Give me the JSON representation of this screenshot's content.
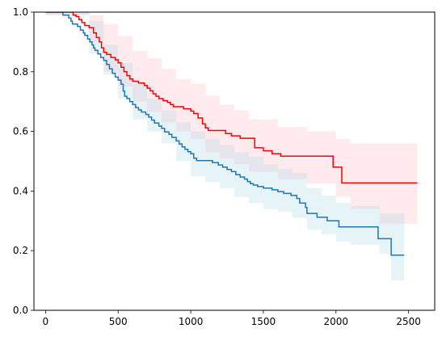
{
  "chart_data": {
    "type": "line",
    "step": true,
    "xlim": [
      -80,
      2680
    ],
    "ylim": [
      0,
      1.0
    ],
    "x_ticks": [
      0,
      500,
      1000,
      1500,
      2000,
      2500
    ],
    "y_ticks": [
      0.0,
      0.2,
      0.4,
      0.6,
      0.8,
      1.0
    ],
    "x_tick_labels": [
      "0",
      "500",
      "1000",
      "1500",
      "2000",
      "2500"
    ],
    "y_tick_labels": [
      "0.0",
      "0.2",
      "0.4",
      "0.6",
      "0.8",
      "1.0"
    ],
    "grid": false,
    "series": [
      {
        "color": "#ff0000",
        "band_color": "#ffb6c1",
        "band_opacity": 0.28,
        "points": [
          [
            0,
            1.0
          ],
          [
            170,
            1.0
          ],
          [
            190,
            0.99
          ],
          [
            210,
            0.985
          ],
          [
            230,
            0.975
          ],
          [
            250,
            0.965
          ],
          [
            270,
            0.955
          ],
          [
            300,
            0.948
          ],
          [
            330,
            0.93
          ],
          [
            350,
            0.915
          ],
          [
            370,
            0.9
          ],
          [
            385,
            0.88
          ],
          [
            400,
            0.865
          ],
          [
            420,
            0.858
          ],
          [
            450,
            0.848
          ],
          [
            480,
            0.84
          ],
          [
            500,
            0.83
          ],
          [
            520,
            0.815
          ],
          [
            540,
            0.8
          ],
          [
            560,
            0.787
          ],
          [
            580,
            0.776
          ],
          [
            600,
            0.768
          ],
          [
            640,
            0.762
          ],
          [
            680,
            0.754
          ],
          [
            700,
            0.745
          ],
          [
            720,
            0.736
          ],
          [
            740,
            0.726
          ],
          [
            760,
            0.718
          ],
          [
            780,
            0.71
          ],
          [
            810,
            0.703
          ],
          [
            840,
            0.697
          ],
          [
            860,
            0.69
          ],
          [
            880,
            0.683
          ],
          [
            950,
            0.676
          ],
          [
            1000,
            0.668
          ],
          [
            1020,
            0.66
          ],
          [
            1050,
            0.645
          ],
          [
            1080,
            0.625
          ],
          [
            1100,
            0.612
          ],
          [
            1120,
            0.603
          ],
          [
            1240,
            0.593
          ],
          [
            1280,
            0.585
          ],
          [
            1340,
            0.577
          ],
          [
            1440,
            0.545
          ],
          [
            1500,
            0.535
          ],
          [
            1560,
            0.525
          ],
          [
            1620,
            0.517
          ],
          [
            1980,
            0.48
          ],
          [
            2040,
            0.427
          ],
          [
            2560,
            0.427
          ]
        ],
        "upper": [
          [
            0,
            1.0
          ],
          [
            300,
            0.99
          ],
          [
            400,
            0.96
          ],
          [
            500,
            0.92
          ],
          [
            600,
            0.87
          ],
          [
            700,
            0.845
          ],
          [
            800,
            0.81
          ],
          [
            900,
            0.775
          ],
          [
            1000,
            0.76
          ],
          [
            1100,
            0.72
          ],
          [
            1200,
            0.69
          ],
          [
            1300,
            0.67
          ],
          [
            1400,
            0.64
          ],
          [
            1600,
            0.615
          ],
          [
            1800,
            0.6
          ],
          [
            2000,
            0.575
          ],
          [
            2100,
            0.56
          ],
          [
            2560,
            0.56
          ]
        ],
        "lower": [
          [
            0,
            0.99
          ],
          [
            300,
            0.9
          ],
          [
            400,
            0.8
          ],
          [
            500,
            0.75
          ],
          [
            600,
            0.7
          ],
          [
            700,
            0.665
          ],
          [
            800,
            0.63
          ],
          [
            900,
            0.6
          ],
          [
            1000,
            0.575
          ],
          [
            1100,
            0.53
          ],
          [
            1200,
            0.51
          ],
          [
            1300,
            0.49
          ],
          [
            1400,
            0.465
          ],
          [
            1600,
            0.44
          ],
          [
            1800,
            0.425
          ],
          [
            2000,
            0.38
          ],
          [
            2100,
            0.34
          ],
          [
            2300,
            0.29
          ],
          [
            2560,
            0.29
          ]
        ]
      },
      {
        "color": "#1f77b4",
        "band_color": "#add8e6",
        "band_opacity": 0.3,
        "points": [
          [
            0,
            1.0
          ],
          [
            100,
            1.0
          ],
          [
            120,
            0.99
          ],
          [
            160,
            0.98
          ],
          [
            175,
            0.97
          ],
          [
            185,
            0.96
          ],
          [
            220,
            0.952
          ],
          [
            240,
            0.94
          ],
          [
            260,
            0.93
          ],
          [
            270,
            0.922
          ],
          [
            290,
            0.91
          ],
          [
            305,
            0.9
          ],
          [
            320,
            0.89
          ],
          [
            330,
            0.88
          ],
          [
            340,
            0.872
          ],
          [
            360,
            0.86
          ],
          [
            380,
            0.848
          ],
          [
            400,
            0.838
          ],
          [
            420,
            0.824
          ],
          [
            440,
            0.81
          ],
          [
            460,
            0.795
          ],
          [
            480,
            0.782
          ],
          [
            500,
            0.772
          ],
          [
            520,
            0.758
          ],
          [
            535,
            0.735
          ],
          [
            545,
            0.718
          ],
          [
            560,
            0.71
          ],
          [
            580,
            0.7
          ],
          [
            600,
            0.69
          ],
          [
            620,
            0.68
          ],
          [
            640,
            0.672
          ],
          [
            660,
            0.665
          ],
          [
            690,
            0.657
          ],
          [
            710,
            0.648
          ],
          [
            730,
            0.638
          ],
          [
            750,
            0.628
          ],
          [
            780,
            0.618
          ],
          [
            800,
            0.61
          ],
          [
            820,
            0.598
          ],
          [
            850,
            0.59
          ],
          [
            870,
            0.58
          ],
          [
            900,
            0.568
          ],
          [
            920,
            0.558
          ],
          [
            940,
            0.548
          ],
          [
            960,
            0.54
          ],
          [
            980,
            0.532
          ],
          [
            1000,
            0.525
          ],
          [
            1020,
            0.51
          ],
          [
            1040,
            0.502
          ],
          [
            1100,
            0.502
          ],
          [
            1150,
            0.495
          ],
          [
            1190,
            0.487
          ],
          [
            1220,
            0.48
          ],
          [
            1250,
            0.472
          ],
          [
            1280,
            0.465
          ],
          [
            1310,
            0.455
          ],
          [
            1340,
            0.447
          ],
          [
            1370,
            0.44
          ],
          [
            1390,
            0.432
          ],
          [
            1410,
            0.425
          ],
          [
            1430,
            0.42
          ],
          [
            1460,
            0.415
          ],
          [
            1500,
            0.41
          ],
          [
            1560,
            0.404
          ],
          [
            1600,
            0.398
          ],
          [
            1640,
            0.392
          ],
          [
            1690,
            0.385
          ],
          [
            1730,
            0.375
          ],
          [
            1750,
            0.36
          ],
          [
            1790,
            0.345
          ],
          [
            1800,
            0.325
          ],
          [
            1870,
            0.312
          ],
          [
            1940,
            0.3
          ],
          [
            2020,
            0.28
          ],
          [
            2050,
            0.28
          ],
          [
            2100,
            0.28
          ],
          [
            2290,
            0.24
          ],
          [
            2380,
            0.185
          ],
          [
            2470,
            0.185
          ]
        ],
        "upper": [
          [
            0,
            1.0
          ],
          [
            300,
            0.97
          ],
          [
            400,
            0.89
          ],
          [
            500,
            0.83
          ],
          [
            600,
            0.76
          ],
          [
            700,
            0.71
          ],
          [
            800,
            0.67
          ],
          [
            900,
            0.63
          ],
          [
            1000,
            0.6
          ],
          [
            1100,
            0.575
          ],
          [
            1200,
            0.555
          ],
          [
            1300,
            0.53
          ],
          [
            1400,
            0.515
          ],
          [
            1500,
            0.49
          ],
          [
            1600,
            0.475
          ],
          [
            1700,
            0.46
          ],
          [
            1800,
            0.41
          ],
          [
            1900,
            0.385
          ],
          [
            2000,
            0.36
          ],
          [
            2100,
            0.35
          ],
          [
            2300,
            0.325
          ],
          [
            2470,
            0.325
          ]
        ],
        "lower": [
          [
            0,
            0.99
          ],
          [
            300,
            0.86
          ],
          [
            400,
            0.79
          ],
          [
            500,
            0.71
          ],
          [
            600,
            0.64
          ],
          [
            700,
            0.6
          ],
          [
            800,
            0.56
          ],
          [
            900,
            0.5
          ],
          [
            1000,
            0.45
          ],
          [
            1100,
            0.43
          ],
          [
            1200,
            0.41
          ],
          [
            1300,
            0.38
          ],
          [
            1400,
            0.36
          ],
          [
            1500,
            0.34
          ],
          [
            1600,
            0.33
          ],
          [
            1700,
            0.31
          ],
          [
            1800,
            0.27
          ],
          [
            1900,
            0.255
          ],
          [
            2000,
            0.23
          ],
          [
            2100,
            0.22
          ],
          [
            2300,
            0.19
          ],
          [
            2380,
            0.1
          ],
          [
            2470,
            0.1
          ]
        ]
      }
    ]
  }
}
